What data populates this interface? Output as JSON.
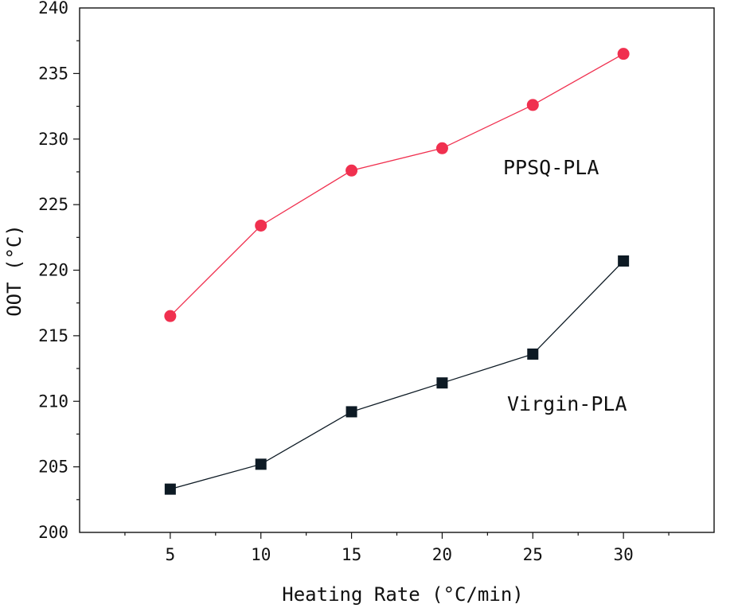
{
  "chart_data": {
    "type": "line",
    "xlabel": "Heating Rate (°C/min)",
    "ylabel": "OOT (°C)",
    "x": [
      5,
      10,
      15,
      20,
      25,
      30
    ],
    "xlim": [
      0,
      35
    ],
    "ylim": [
      200,
      240
    ],
    "xticks": [
      5,
      10,
      15,
      20,
      25,
      30
    ],
    "yticks": [
      200,
      205,
      210,
      215,
      220,
      225,
      230,
      235,
      240
    ],
    "grid": false,
    "legend": "none",
    "series": [
      {
        "name": "PPSQ-PLA",
        "color": "#f0304f",
        "marker": "circle",
        "values": [
          216.5,
          223.4,
          227.6,
          229.3,
          232.6,
          236.5
        ]
      },
      {
        "name": "Virgin-PLA",
        "color": "#0d1a24",
        "marker": "square",
        "values": [
          203.3,
          205.2,
          209.2,
          211.4,
          213.6,
          220.7
        ]
      }
    ]
  }
}
